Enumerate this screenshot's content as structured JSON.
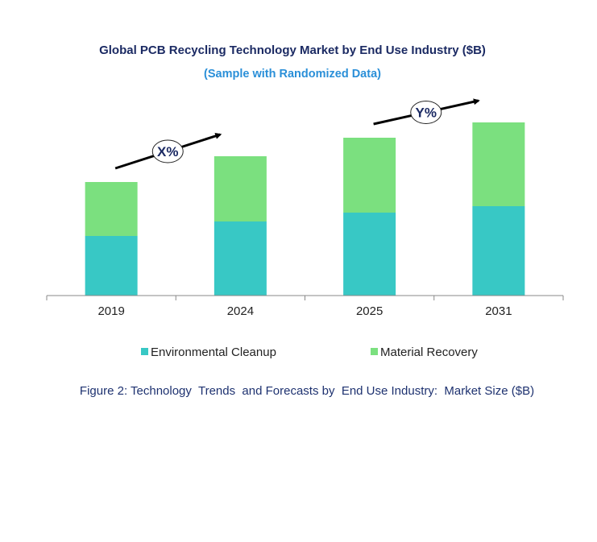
{
  "chart_data": {
    "type": "bar",
    "stacked": true,
    "title": "Global PCB Recycling Technology Market by End Use Industry ($B)",
    "subtitle": "(Sample with Randomized Data)",
    "categories": [
      "2019",
      "2024",
      "2025",
      "2031"
    ],
    "series": [
      {
        "name": "Environmental Cleanup",
        "values": [
          7.4,
          9.2,
          10.3,
          11.1
        ],
        "color": "#38c8c5"
      },
      {
        "name": "Material Recovery",
        "values": [
          6.7,
          8.1,
          9.3,
          10.4
        ],
        "color": "#7be07f"
      }
    ],
    "ylim": [
      0,
      24
    ],
    "grid": false,
    "legend": "bottom",
    "annotations": [
      {
        "text": "X%",
        "from": "2019",
        "to": "2024"
      },
      {
        "text": "Y%",
        "from": "2025",
        "to": "2031"
      }
    ],
    "caption": "Figure 2: Technology  Trends  and Forecasts by  End Use Industry:  Market Size ($B)"
  }
}
